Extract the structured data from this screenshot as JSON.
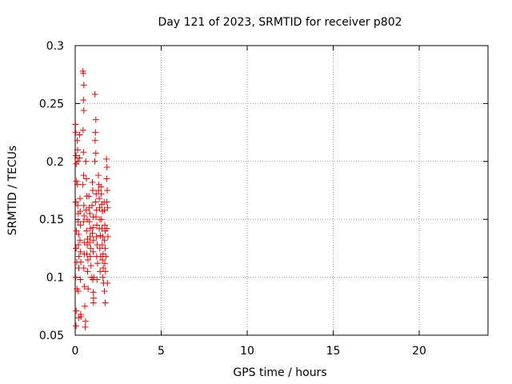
{
  "chart_data": {
    "type": "scatter",
    "title": "Day 121 of 2023, SRMTID for receiver p802",
    "xlabel": "GPS time / hours",
    "ylabel": "SRMTID / TECUs",
    "xlim": [
      0,
      24
    ],
    "ylim": [
      0.05,
      0.3
    ],
    "x_ticks": [
      0,
      5,
      10,
      15,
      20
    ],
    "y_ticks": [
      0.05,
      0.1,
      0.15,
      0.2,
      0.25,
      0.3
    ],
    "x_tick_labels": [
      "0",
      "5",
      "10",
      "15",
      "20"
    ],
    "y_tick_labels": [
      "0.05",
      "0.1",
      "0.15",
      "0.2",
      "0.25",
      "0.3"
    ],
    "grid": true,
    "marker": "+",
    "color": "#ff0000",
    "series": [
      {
        "name": "SRMTID",
        "points": [
          [
            0.02,
            0.232
          ],
          [
            0.03,
            0.225
          ],
          [
            0.05,
            0.205
          ],
          [
            0.06,
            0.198
          ],
          [
            0.08,
            0.183
          ],
          [
            0.04,
            0.165
          ],
          [
            0.07,
            0.14
          ],
          [
            0.05,
            0.125
          ],
          [
            0.09,
            0.113
          ],
          [
            0.03,
            0.1
          ],
          [
            0.1,
            0.09
          ],
          [
            0.06,
            0.071
          ],
          [
            0.05,
            0.058
          ],
          [
            0.12,
            0.218
          ],
          [
            0.14,
            0.21
          ],
          [
            0.16,
            0.2
          ],
          [
            0.13,
            0.18
          ],
          [
            0.15,
            0.162
          ],
          [
            0.18,
            0.155
          ],
          [
            0.17,
            0.148
          ],
          [
            0.2,
            0.137
          ],
          [
            0.19,
            0.128
          ],
          [
            0.22,
            0.118
          ],
          [
            0.21,
            0.108
          ],
          [
            0.18,
            0.088
          ],
          [
            0.2,
            0.065
          ],
          [
            0.26,
            0.223
          ],
          [
            0.25,
            0.203
          ],
          [
            0.28,
            0.168
          ],
          [
            0.29,
            0.157
          ],
          [
            0.3,
            0.145
          ],
          [
            0.28,
            0.132
          ],
          [
            0.31,
            0.122
          ],
          [
            0.33,
            0.113
          ],
          [
            0.3,
            0.098
          ],
          [
            0.34,
            0.066
          ],
          [
            0.32,
            0.068
          ],
          [
            0.45,
            0.278
          ],
          [
            0.47,
            0.276
          ],
          [
            0.5,
            0.266
          ],
          [
            0.48,
            0.253
          ],
          [
            0.5,
            0.244
          ],
          [
            0.46,
            0.227
          ],
          [
            0.48,
            0.208
          ],
          [
            0.49,
            0.188
          ],
          [
            0.45,
            0.18
          ],
          [
            0.5,
            0.162
          ],
          [
            0.52,
            0.153
          ],
          [
            0.48,
            0.148
          ],
          [
            0.55,
            0.13
          ],
          [
            0.53,
            0.12
          ],
          [
            0.5,
            0.108
          ],
          [
            0.54,
            0.092
          ],
          [
            0.56,
            0.075
          ],
          [
            0.6,
            0.062
          ],
          [
            0.58,
            0.057
          ],
          [
            0.62,
            0.2
          ],
          [
            0.65,
            0.185
          ],
          [
            0.68,
            0.17
          ],
          [
            0.64,
            0.158
          ],
          [
            0.7,
            0.15
          ],
          [
            0.66,
            0.14
          ],
          [
            0.72,
            0.133
          ],
          [
            0.7,
            0.128
          ],
          [
            0.68,
            0.12
          ],
          [
            0.74,
            0.115
          ],
          [
            0.72,
            0.105
          ],
          [
            0.75,
            0.09
          ],
          [
            0.8,
            0.17
          ],
          [
            0.82,
            0.16
          ],
          [
            0.85,
            0.155
          ],
          [
            0.83,
            0.148
          ],
          [
            0.88,
            0.142
          ],
          [
            0.86,
            0.135
          ],
          [
            0.84,
            0.13
          ],
          [
            0.9,
            0.125
          ],
          [
            0.87,
            0.118
          ],
          [
            0.92,
            0.11
          ],
          [
            0.94,
            0.1
          ],
          [
            1.0,
            0.182
          ],
          [
            1.02,
            0.175
          ],
          [
            0.98,
            0.162
          ],
          [
            1.05,
            0.152
          ],
          [
            1.03,
            0.143
          ],
          [
            1.0,
            0.138
          ],
          [
            1.06,
            0.132
          ],
          [
            1.04,
            0.122
          ],
          [
            1.08,
            0.1
          ],
          [
            1.02,
            0.098
          ],
          [
            1.05,
            0.087
          ],
          [
            1.07,
            0.082
          ],
          [
            1.06,
            0.078
          ],
          [
            1.15,
            0.258
          ],
          [
            1.2,
            0.236
          ],
          [
            1.18,
            0.225
          ],
          [
            1.16,
            0.218
          ],
          [
            1.2,
            0.207
          ],
          [
            1.14,
            0.2
          ],
          [
            1.22,
            0.172
          ],
          [
            1.19,
            0.165
          ],
          [
            1.24,
            0.158
          ],
          [
            1.21,
            0.152
          ],
          [
            1.26,
            0.145
          ],
          [
            1.23,
            0.135
          ],
          [
            1.28,
            0.128
          ],
          [
            1.25,
            0.118
          ],
          [
            1.3,
            0.112
          ],
          [
            1.27,
            0.098
          ],
          [
            1.35,
            0.188
          ],
          [
            1.38,
            0.18
          ],
          [
            1.36,
            0.175
          ],
          [
            1.4,
            0.168
          ],
          [
            1.42,
            0.16
          ],
          [
            1.44,
            0.15
          ],
          [
            1.4,
            0.142
          ],
          [
            1.46,
            0.136
          ],
          [
            1.43,
            0.125
          ],
          [
            1.48,
            0.118
          ],
          [
            1.45,
            0.105
          ],
          [
            1.5,
            0.178
          ],
          [
            1.52,
            0.172
          ],
          [
            1.55,
            0.163
          ],
          [
            1.58,
            0.157
          ],
          [
            1.53,
            0.15
          ],
          [
            1.56,
            0.142
          ],
          [
            1.6,
            0.135
          ],
          [
            1.57,
            0.128
          ],
          [
            1.62,
            0.12
          ],
          [
            1.59,
            0.115
          ],
          [
            1.63,
            0.108
          ],
          [
            1.6,
            0.1
          ],
          [
            1.65,
            0.095
          ],
          [
            1.68,
            0.165
          ],
          [
            1.7,
            0.158
          ],
          [
            1.72,
            0.145
          ],
          [
            1.75,
            0.14
          ],
          [
            1.7,
            0.132
          ],
          [
            1.74,
            0.125
          ],
          [
            1.78,
            0.118
          ],
          [
            1.72,
            0.112
          ],
          [
            1.76,
            0.105
          ],
          [
            1.7,
            0.088
          ],
          [
            1.75,
            0.078
          ],
          [
            1.82,
            0.202
          ],
          [
            1.85,
            0.195
          ],
          [
            1.83,
            0.185
          ],
          [
            1.86,
            0.175
          ],
          [
            1.84,
            0.165
          ],
          [
            1.88,
            0.16
          ],
          [
            1.85,
            0.142
          ],
          [
            1.9,
            0.135
          ],
          [
            1.87,
            0.095
          ]
        ]
      }
    ]
  }
}
